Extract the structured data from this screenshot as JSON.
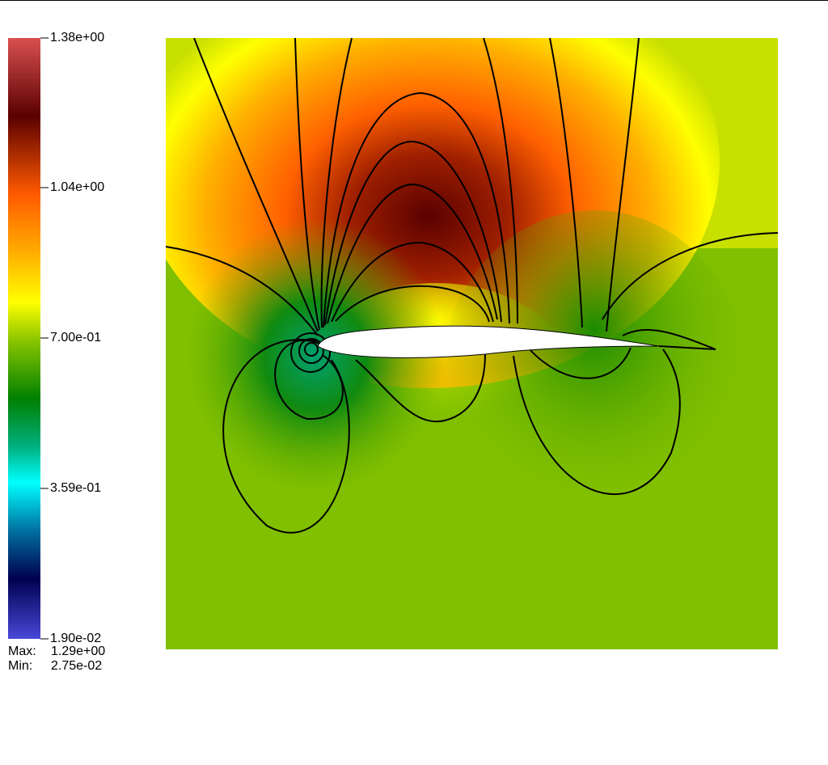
{
  "colorbar": {
    "labels": [
      "1.38e+00",
      "1.04e+00",
      "7.00e-01",
      "3.59e-01",
      "1.90e-02"
    ]
  },
  "stats": {
    "max_label": "Max:",
    "max": "1.29e+00",
    "min_label": "Min:",
    "min": "2.75e-02"
  }
}
